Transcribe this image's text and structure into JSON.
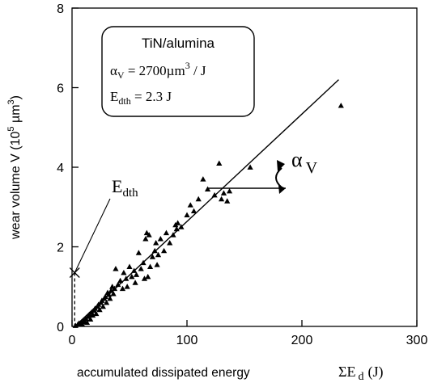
{
  "chart_data": {
    "type": "scatter",
    "xlabel": "accumulated dissipated energy",
    "xlabel_symbol": "ΣE",
    "xlabel_sub": "d",
    "xlabel_unit": "(J)",
    "ylabel": "wear volume V (10",
    "ylabel_exp": "5",
    "ylabel_unit": " µm",
    "ylabel_unit_exp": "3",
    "ylabel_close": ")",
    "xlim": [
      0,
      300
    ],
    "ylim": [
      0,
      8
    ],
    "xticks": [
      "0",
      "100",
      "200",
      "300"
    ],
    "yticks": [
      "0",
      "2",
      "4",
      "6",
      "8"
    ],
    "legend_box": {
      "title": "TiN/alumina",
      "alpha_symbol": "α",
      "alpha_sub": "V",
      "alpha_value": " = 2700µm",
      "alpha_exp": "3",
      "alpha_unit": " / J",
      "edth_symbol": "E",
      "edth_sub": "dth",
      "edth_value": " = 2.3 J"
    },
    "annotations": {
      "edth_label": "E",
      "edth_sub": "dth",
      "alpha_label": "α",
      "alpha_sub": "V"
    },
    "fit_line": {
      "x": [
        2.3,
        232
      ],
      "y": [
        0.0,
        6.2
      ]
    },
    "edth_marker": {
      "x": 2.3,
      "y": 1.35
    },
    "points": [
      [
        3,
        0.02
      ],
      [
        5,
        0.05
      ],
      [
        6,
        0.08
      ],
      [
        8,
        0.1
      ],
      [
        9,
        0.05
      ],
      [
        10,
        0.15
      ],
      [
        11,
        0.12
      ],
      [
        12,
        0.2
      ],
      [
        13,
        0.1
      ],
      [
        14,
        0.25
      ],
      [
        15,
        0.3
      ],
      [
        16,
        0.18
      ],
      [
        17,
        0.35
      ],
      [
        18,
        0.28
      ],
      [
        19,
        0.4
      ],
      [
        20,
        0.45
      ],
      [
        21,
        0.32
      ],
      [
        22,
        0.5
      ],
      [
        23,
        0.55
      ],
      [
        24,
        0.42
      ],
      [
        25,
        0.6
      ],
      [
        26,
        0.65
      ],
      [
        27,
        0.5
      ],
      [
        28,
        0.7
      ],
      [
        29,
        0.75
      ],
      [
        30,
        0.6
      ],
      [
        31,
        0.85
      ],
      [
        32,
        0.8
      ],
      [
        33,
        0.7
      ],
      [
        34,
        0.9
      ],
      [
        35,
        1.0
      ],
      [
        36,
        0.82
      ],
      [
        37,
        0.95
      ],
      [
        38,
        1.45
      ],
      [
        40,
        1.05
      ],
      [
        42,
        1.15
      ],
      [
        44,
        0.95
      ],
      [
        45,
        1.35
      ],
      [
        47,
        1.2
      ],
      [
        48,
        1.0
      ],
      [
        50,
        1.5
      ],
      [
        52,
        1.25
      ],
      [
        54,
        1.4
      ],
      [
        55,
        1.1
      ],
      [
        56,
        1.3
      ],
      [
        58,
        1.85
      ],
      [
        60,
        1.45
      ],
      [
        62,
        1.6
      ],
      [
        63,
        1.2
      ],
      [
        64,
        2.2
      ],
      [
        65,
        2.35
      ],
      [
        66,
        1.25
      ],
      [
        67,
        2.3
      ],
      [
        68,
        1.5
      ],
      [
        70,
        1.75
      ],
      [
        72,
        1.9
      ],
      [
        73,
        2.1
      ],
      [
        74,
        1.55
      ],
      [
        75,
        1.8
      ],
      [
        77,
        2.2
      ],
      [
        80,
        1.9
      ],
      [
        82,
        2.35
      ],
      [
        85,
        2.1
      ],
      [
        88,
        2.3
      ],
      [
        90,
        2.55
      ],
      [
        91,
        2.45
      ],
      [
        92,
        2.6
      ],
      [
        95,
        2.5
      ],
      [
        100,
        2.8
      ],
      [
        103,
        3.05
      ],
      [
        106,
        2.9
      ],
      [
        110,
        3.2
      ],
      [
        114,
        3.7
      ],
      [
        118,
        3.45
      ],
      [
        124,
        3.3
      ],
      [
        128,
        4.1
      ],
      [
        130,
        3.2
      ],
      [
        132,
        3.35
      ],
      [
        135,
        3.15
      ],
      [
        137,
        3.4
      ],
      [
        155,
        4.0
      ],
      [
        234,
        5.55
      ]
    ]
  }
}
